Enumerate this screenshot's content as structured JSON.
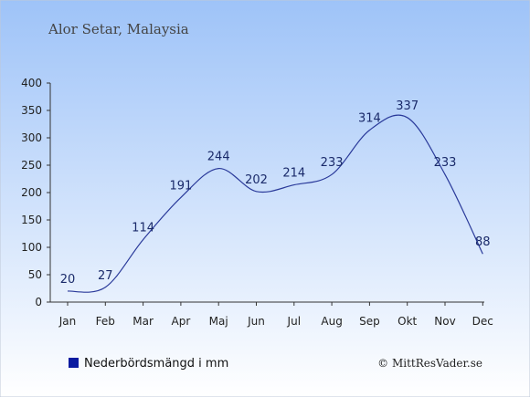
{
  "header": {
    "location": "Alor Setar, Malaysia"
  },
  "legend": {
    "label": "Nederbördsmängd i mm",
    "swatch_color": "#0a1aa0"
  },
  "credit": {
    "text": "© MittResVader.se"
  },
  "chart_data": {
    "type": "line",
    "title": "",
    "xlabel": "",
    "ylabel": "",
    "categories": [
      "Jan",
      "Feb",
      "Mar",
      "Apr",
      "Maj",
      "Jun",
      "Jul",
      "Aug",
      "Sep",
      "Okt",
      "Nov",
      "Dec"
    ],
    "series": [
      {
        "name": "Nederbördsmängd i mm",
        "values": [
          20,
          27,
          114,
          191,
          244,
          202,
          214,
          233,
          314,
          337,
          233,
          88
        ],
        "color": "#2a3a9a"
      }
    ],
    "ylim": [
      0,
      400
    ],
    "yticks": [
      0,
      50,
      100,
      150,
      200,
      250,
      300,
      350,
      400
    ],
    "data_labels": true,
    "legend_position": "bottom-left",
    "grid": false,
    "background_gradient": [
      "#9ec3f8",
      "#ffffff"
    ]
  }
}
